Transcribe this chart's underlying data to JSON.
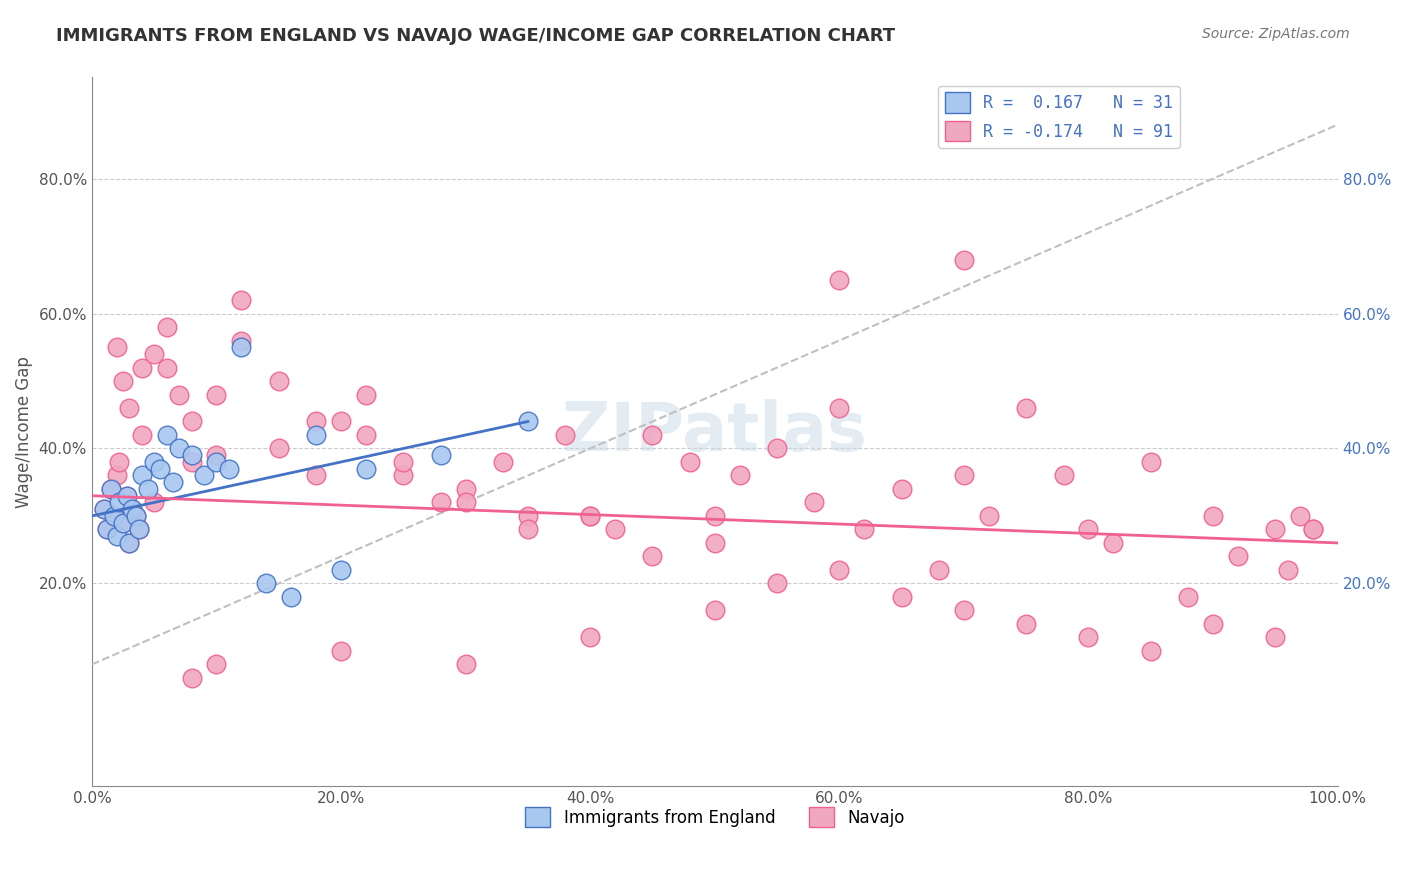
{
  "title": "IMMIGRANTS FROM ENGLAND VS NAVAJO WAGE/INCOME GAP CORRELATION CHART",
  "source": "Source: ZipAtlas.com",
  "xlabel": "",
  "ylabel": "Wage/Income Gap",
  "xlim": [
    0.0,
    1.0
  ],
  "ylim": [
    -0.1,
    0.95
  ],
  "xtick_labels": [
    "0.0%",
    "20.0%",
    "40.0%",
    "60.0%",
    "80.0%",
    "100.0%"
  ],
  "xtick_positions": [
    0.0,
    0.2,
    0.4,
    0.6,
    0.8,
    1.0
  ],
  "ytick_labels": [
    "20.0%",
    "40.0%",
    "60.0%",
    "80.0%"
  ],
  "ytick_positions": [
    0.2,
    0.4,
    0.6,
    0.8
  ],
  "legend_r1": "R =  0.167",
  "legend_n1": "N = 31",
  "legend_r2": "R = -0.174",
  "legend_n2": "N = 91",
  "blue_color": "#a8c8f0",
  "pink_color": "#f0a8c0",
  "blue_line_color": "#4472c4",
  "pink_line_color": "#f06090",
  "trend_line_color": "#b0b0b0",
  "watermark": "ZIPatlas",
  "blue_scatter_x": [
    0.01,
    0.012,
    0.015,
    0.018,
    0.02,
    0.022,
    0.025,
    0.028,
    0.03,
    0.032,
    0.035,
    0.038,
    0.04,
    0.045,
    0.05,
    0.055,
    0.06,
    0.065,
    0.07,
    0.08,
    0.09,
    0.1,
    0.11,
    0.12,
    0.14,
    0.16,
    0.18,
    0.2,
    0.22,
    0.28,
    0.35
  ],
  "blue_scatter_y": [
    0.31,
    0.28,
    0.34,
    0.3,
    0.27,
    0.32,
    0.29,
    0.33,
    0.26,
    0.31,
    0.3,
    0.28,
    0.36,
    0.34,
    0.38,
    0.37,
    0.42,
    0.35,
    0.4,
    0.39,
    0.36,
    0.38,
    0.37,
    0.55,
    0.2,
    0.18,
    0.42,
    0.22,
    0.37,
    0.39,
    0.44
  ],
  "pink_scatter_x": [
    0.01,
    0.012,
    0.015,
    0.018,
    0.02,
    0.022,
    0.025,
    0.028,
    0.03,
    0.032,
    0.035,
    0.038,
    0.04,
    0.05,
    0.06,
    0.07,
    0.08,
    0.1,
    0.12,
    0.15,
    0.18,
    0.2,
    0.22,
    0.25,
    0.28,
    0.3,
    0.33,
    0.35,
    0.38,
    0.4,
    0.42,
    0.45,
    0.48,
    0.5,
    0.52,
    0.55,
    0.58,
    0.6,
    0.62,
    0.65,
    0.68,
    0.7,
    0.72,
    0.75,
    0.78,
    0.8,
    0.82,
    0.85,
    0.88,
    0.9,
    0.92,
    0.95,
    0.96,
    0.97,
    0.98,
    0.02,
    0.025,
    0.03,
    0.04,
    0.05,
    0.06,
    0.08,
    0.1,
    0.12,
    0.15,
    0.18,
    0.22,
    0.25,
    0.3,
    0.35,
    0.4,
    0.45,
    0.5,
    0.55,
    0.6,
    0.65,
    0.7,
    0.75,
    0.8,
    0.85,
    0.9,
    0.95,
    0.98,
    0.6,
    0.7,
    0.5,
    0.4,
    0.3,
    0.2,
    0.1,
    0.08
  ],
  "pink_scatter_y": [
    0.31,
    0.28,
    0.34,
    0.3,
    0.36,
    0.38,
    0.29,
    0.33,
    0.26,
    0.31,
    0.3,
    0.28,
    0.42,
    0.32,
    0.52,
    0.48,
    0.38,
    0.39,
    0.56,
    0.4,
    0.36,
    0.44,
    0.42,
    0.36,
    0.32,
    0.34,
    0.38,
    0.3,
    0.42,
    0.3,
    0.28,
    0.42,
    0.38,
    0.3,
    0.36,
    0.4,
    0.32,
    0.46,
    0.28,
    0.34,
    0.22,
    0.36,
    0.3,
    0.46,
    0.36,
    0.28,
    0.26,
    0.38,
    0.18,
    0.3,
    0.24,
    0.28,
    0.22,
    0.3,
    0.28,
    0.55,
    0.5,
    0.46,
    0.52,
    0.54,
    0.58,
    0.44,
    0.48,
    0.62,
    0.5,
    0.44,
    0.48,
    0.38,
    0.32,
    0.28,
    0.3,
    0.24,
    0.26,
    0.2,
    0.22,
    0.18,
    0.16,
    0.14,
    0.12,
    0.1,
    0.14,
    0.12,
    0.28,
    0.65,
    0.68,
    0.16,
    0.12,
    0.08,
    0.1,
    0.08,
    0.06
  ]
}
